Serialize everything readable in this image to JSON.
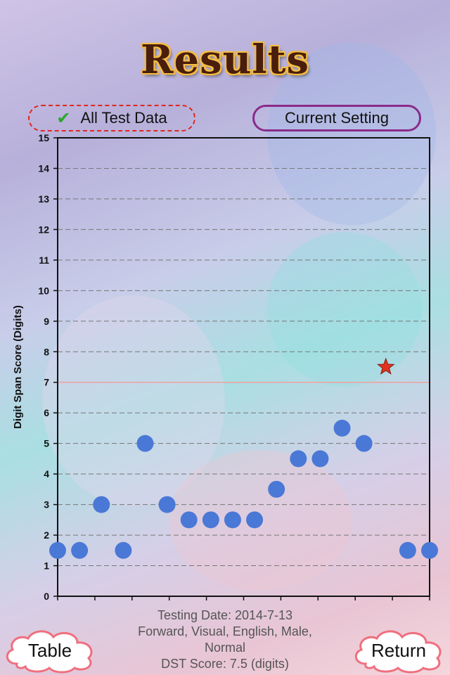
{
  "title": "Results",
  "filters": {
    "all_label": "All Test Data",
    "current_label": "Current Setting"
  },
  "chart_data": {
    "type": "scatter",
    "ylabel": "Digit Span Score (Digits)",
    "ylim": [
      0,
      15
    ],
    "yticks": [
      0,
      1,
      2,
      3,
      4,
      5,
      6,
      7,
      8,
      9,
      10,
      11,
      12,
      13,
      14,
      15
    ],
    "grid": true,
    "reference_line": 7,
    "points": [
      1.5,
      1.5,
      3,
      1.5,
      5,
      3,
      2.5,
      2.5,
      2.5,
      2.5,
      3.5,
      4.5,
      4.5,
      5.5,
      5,
      7.5,
      1.5,
      1.5
    ],
    "highlight_index": 15,
    "colors": {
      "point": "#4a78d6",
      "star": "#e2331f",
      "reference": "#f2a0a0",
      "grid": "#777777"
    }
  },
  "info": {
    "date": "Testing Date: 2014-7-13",
    "setting_line1": "Forward, Visual, English, Male,",
    "setting_line2": "Normal",
    "score": "DST Score: 7.5 (digits)"
  },
  "buttons": {
    "table": "Table",
    "return": "Return"
  }
}
